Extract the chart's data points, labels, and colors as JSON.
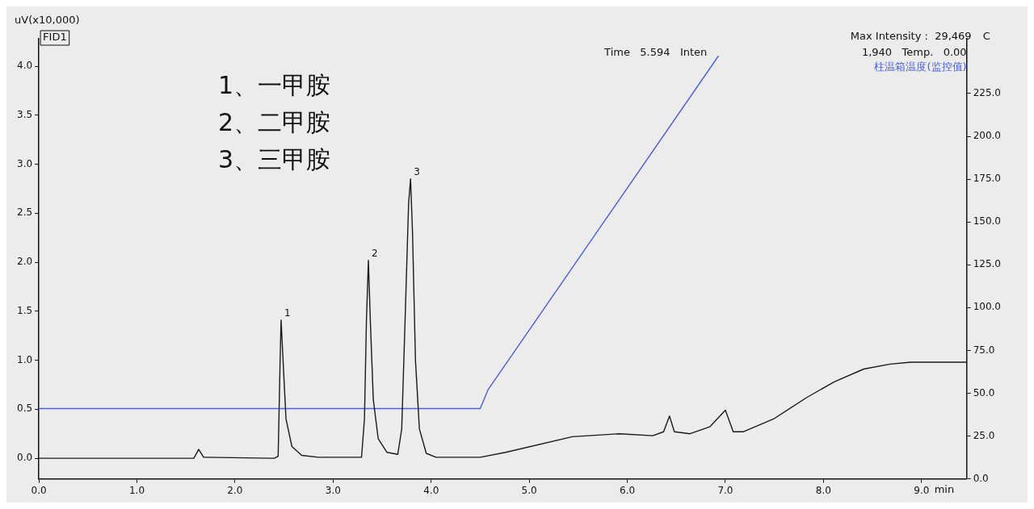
{
  "chart_data": {
    "type": "line",
    "ylabel": "uV(x10,000)",
    "xlabel": "min",
    "y2label": "C",
    "annotations": [
      "FID1",
      "Time   5.594   Inten",
      "1,940   Temp.   0.00",
      "Max Intensity :  29,469",
      "1、一甲胺",
      "2、二甲胺",
      "3、三甲胺",
      {
        "text": "1",
        "x": 2.47,
        "y": 1.41
      },
      {
        "text": "2",
        "x": 3.36,
        "y": 2.02
      },
      {
        "text": "3",
        "x": 3.79,
        "y": 2.85
      }
    ],
    "xlim": [
      0,
      9.46
    ],
    "xticks": [
      {
        "value": 0,
        "label": "0.0"
      },
      {
        "value": 1,
        "label": "1.0"
      },
      {
        "value": 2,
        "label": "2.0"
      },
      {
        "value": 3,
        "label": "3.0"
      },
      {
        "value": 4,
        "label": "4.0"
      },
      {
        "value": 5,
        "label": "5.0"
      },
      {
        "value": 6,
        "label": "6.0"
      },
      {
        "value": 7,
        "label": "7.0"
      },
      {
        "value": 8,
        "label": "8.0"
      },
      {
        "value": 9,
        "label": "9.0"
      }
    ],
    "ylim": [
      -0.21,
      4.28
    ],
    "yticks": [
      {
        "value": 0,
        "label": "0.0"
      },
      {
        "value": 0.5,
        "label": "0.5"
      },
      {
        "value": 1,
        "label": "1.0"
      },
      {
        "value": 1.5,
        "label": "1.5"
      },
      {
        "value": 2,
        "label": "2.0"
      },
      {
        "value": 2.5,
        "label": "2.5"
      },
      {
        "value": 3,
        "label": "3.0"
      },
      {
        "value": 3.5,
        "label": "3.5"
      },
      {
        "value": 4,
        "label": "4.0"
      }
    ],
    "y2lim": [
      0,
      257
    ],
    "y2ticks": [
      {
        "value": 0,
        "label": "0.0"
      },
      {
        "value": 25,
        "label": "25.0"
      },
      {
        "value": 50,
        "label": "50.0"
      },
      {
        "value": 75,
        "label": "75.0"
      },
      {
        "value": 100,
        "label": "100.0"
      },
      {
        "value": 125,
        "label": "125.0"
      },
      {
        "value": 150,
        "label": "150.0"
      },
      {
        "value": 175,
        "label": "175.0"
      },
      {
        "value": 200,
        "label": "200.0"
      },
      {
        "value": 225,
        "label": "225.0"
      }
    ],
    "grid": false,
    "legend": false,
    "marker": "none",
    "line_style": "solid",
    "series": [
      {
        "color": "#1a1a1a",
        "x": [
          0,
          1.58,
          1.63,
          1.68,
          2.4,
          2.44,
          2.46,
          2.47,
          2.49,
          2.52,
          2.58,
          2.68,
          2.85,
          3.29,
          3.32,
          3.34,
          3.36,
          3.38,
          3.41,
          3.46,
          3.55,
          3.66,
          3.7,
          3.74,
          3.77,
          3.79,
          3.81,
          3.84,
          3.88,
          3.95,
          4.05,
          4.5,
          4.76,
          5.44,
          5.92,
          6.26,
          6.37,
          6.43,
          6.48,
          6.64,
          6.84,
          7.0,
          7.08,
          7.18,
          7.49,
          7.83,
          8.11,
          8.41,
          8.68,
          8.89,
          9.46
        ],
        "values": [
          0,
          0,
          0.09,
          0.01,
          0,
          0.02,
          1.0,
          1.41,
          1.0,
          0.4,
          0.12,
          0.03,
          0.01,
          0.01,
          0.4,
          1.4,
          2.02,
          1.4,
          0.6,
          0.2,
          0.06,
          0.04,
          0.3,
          1.6,
          2.6,
          2.85,
          2.3,
          1.0,
          0.3,
          0.05,
          0.01,
          0.01,
          0.06,
          0.22,
          0.25,
          0.23,
          0.27,
          0.43,
          0.27,
          0.25,
          0.32,
          0.49,
          0.27,
          0.27,
          0.4,
          0.62,
          0.78,
          0.91,
          0.96,
          0.98,
          0.98
        ]
      },
      {
        "name": "柱温箱温度(监控值)",
        "color": "#4a5fe0",
        "axis": "y2",
        "x": [
          0,
          4.5,
          4.58,
          6.93
        ],
        "values": [
          41,
          41,
          52,
          247
        ]
      }
    ]
  }
}
